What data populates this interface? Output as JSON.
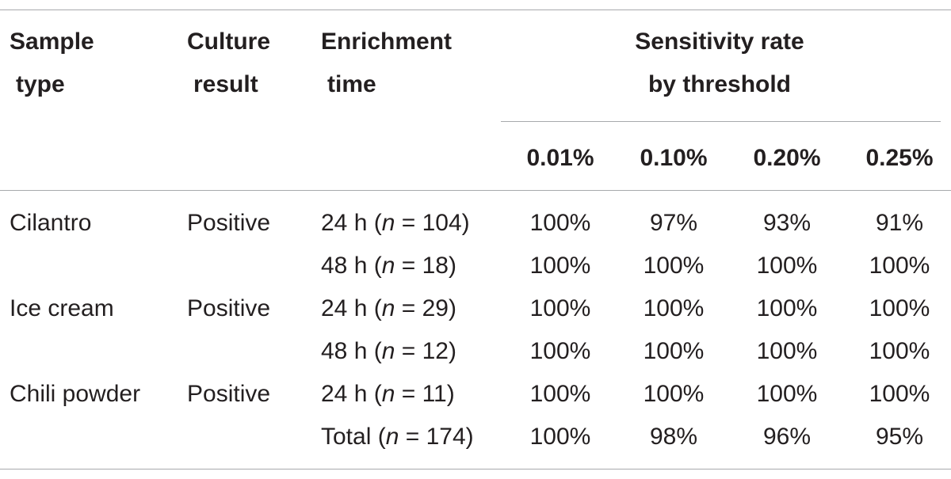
{
  "header": {
    "sample_type": [
      "Sample",
      "type"
    ],
    "culture_result": [
      "Culture",
      "result"
    ],
    "enrichment_time": [
      "Enrichment",
      "time"
    ],
    "sensitivity": [
      "Sensitivity rate",
      "by threshold"
    ],
    "thresholds": [
      "0.01%",
      "0.10%",
      "0.20%",
      "0.25%"
    ]
  },
  "rows": [
    {
      "sample": "Cilantro",
      "culture": "Positive",
      "time": "24 h (",
      "n": "n",
      "count": " = 104)",
      "values": [
        "100%",
        "97%",
        "93%",
        "91%"
      ]
    },
    {
      "sample": "",
      "culture": "",
      "time": "48 h (",
      "n": "n",
      "count": " = 18)",
      "values": [
        "100%",
        "100%",
        "100%",
        "100%"
      ]
    },
    {
      "sample": "Ice cream",
      "culture": "Positive",
      "time": "24 h (",
      "n": "n",
      "count": " = 29)",
      "values": [
        "100%",
        "100%",
        "100%",
        "100%"
      ]
    },
    {
      "sample": "",
      "culture": "",
      "time": "48 h (",
      "n": "n",
      "count": " = 12)",
      "values": [
        "100%",
        "100%",
        "100%",
        "100%"
      ]
    },
    {
      "sample": "Chili powder",
      "culture": "Positive",
      "time": "24 h (",
      "n": "n",
      "count": " = 11)",
      "values": [
        "100%",
        "100%",
        "100%",
        "100%"
      ]
    },
    {
      "sample": "",
      "culture": "",
      "time": "Total (",
      "n": "n",
      "count": " = 174)",
      "values": [
        "100%",
        "98%",
        "96%",
        "95%"
      ]
    }
  ]
}
